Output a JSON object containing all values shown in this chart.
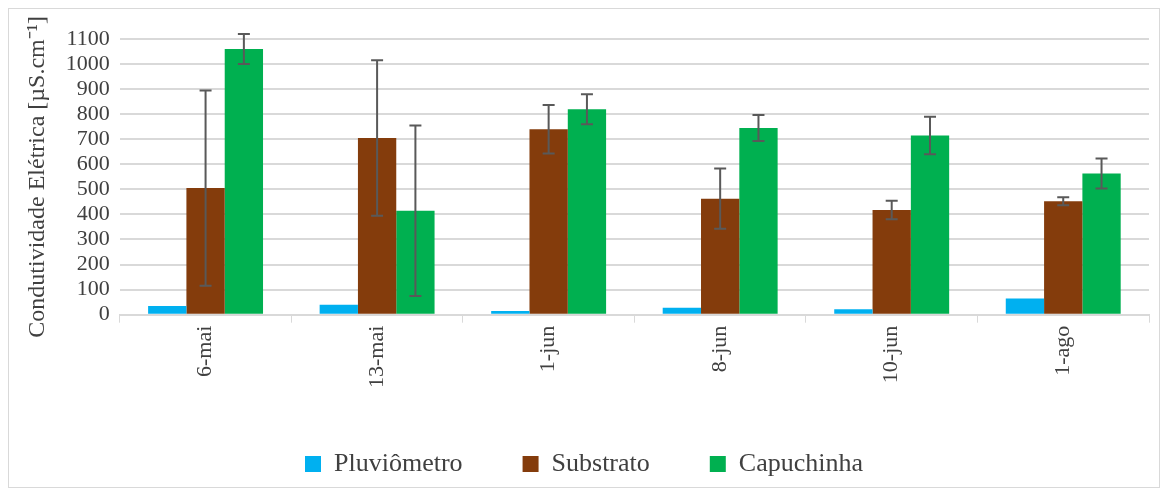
{
  "chart_data": {
    "type": "bar",
    "ylabel": "Condutividade Elétrica [µS.cm⁻¹]",
    "categories": [
      "6-mai",
      "13-mai",
      "1-jun",
      "8-jun",
      "10-jun",
      "1-ago"
    ],
    "series": [
      {
        "name": "Pluviômetro",
        "color": "#00b0f0",
        "values": [
          35,
          40,
          15,
          28,
          22,
          65
        ]
      },
      {
        "name": "Substrato",
        "color": "#843c0c",
        "values": [
          505,
          705,
          740,
          463,
          418,
          453
        ],
        "errors": [
          390,
          310,
          97,
          120,
          37,
          16
        ]
      },
      {
        "name": "Capuchinha",
        "color": "#00b050",
        "values": [
          1060,
          415,
          820,
          745,
          715,
          563
        ],
        "errors": [
          60,
          340,
          60,
          52,
          75,
          60
        ]
      }
    ],
    "ylim": [
      0,
      1100
    ],
    "yticks": [
      0,
      100,
      200,
      300,
      400,
      500,
      600,
      700,
      800,
      900,
      1000,
      1100
    ],
    "grid": "y",
    "legend": "bottom"
  }
}
